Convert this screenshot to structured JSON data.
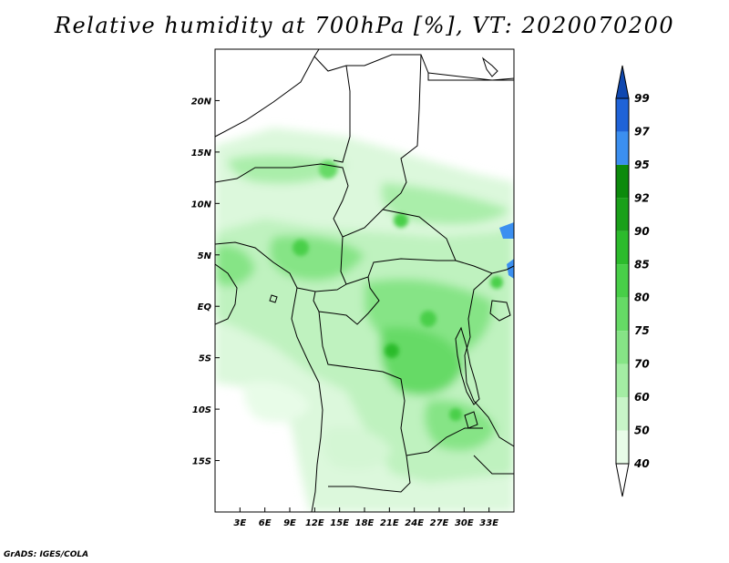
{
  "title": "Relative humidity at 700hPa [%], VT: 2020070200",
  "credit": "GrADS: IGES/COLA",
  "map": {
    "lon_range": [
      0,
      36
    ],
    "lat_range": [
      -20,
      25
    ],
    "lat_ticks": [
      {
        "value": 20,
        "label": "20N"
      },
      {
        "value": 15,
        "label": "15N"
      },
      {
        "value": 10,
        "label": "10N"
      },
      {
        "value": 5,
        "label": "5N"
      },
      {
        "value": 0,
        "label": "EQ"
      },
      {
        "value": -5,
        "label": "5S"
      },
      {
        "value": -10,
        "label": "10S"
      },
      {
        "value": -15,
        "label": "15S"
      }
    ],
    "lon_ticks": [
      {
        "value": 3,
        "label": "3E"
      },
      {
        "value": 6,
        "label": "6E"
      },
      {
        "value": 9,
        "label": "9E"
      },
      {
        "value": 12,
        "label": "12E"
      },
      {
        "value": 15,
        "label": "15E"
      },
      {
        "value": 18,
        "label": "18E"
      },
      {
        "value": 21,
        "label": "21E"
      },
      {
        "value": 24,
        "label": "24E"
      },
      {
        "value": 27,
        "label": "27E"
      },
      {
        "value": 30,
        "label": "30E"
      },
      {
        "value": 33,
        "label": "33E"
      }
    ]
  },
  "colorbar": {
    "levels": [
      "40",
      "50",
      "60",
      "70",
      "75",
      "80",
      "85",
      "90",
      "92",
      "95",
      "97",
      "99"
    ],
    "colors": [
      "#ffffff",
      "#e8fce8",
      "#c8f5c8",
      "#a4eda4",
      "#86e486",
      "#66da66",
      "#48cf48",
      "#2cbb2c",
      "#1aa01a",
      "#0c8a0c",
      "#3b8ff0",
      "#1f63d8",
      "#1048b0"
    ]
  }
}
